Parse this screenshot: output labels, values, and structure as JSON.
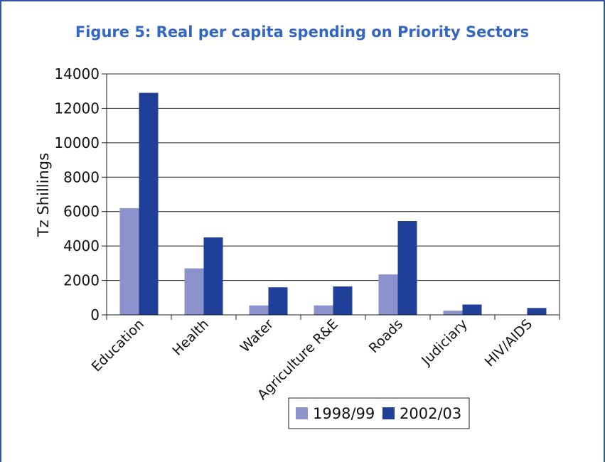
{
  "chart_data": {
    "type": "bar",
    "title": "Figure 5: Real per capita spending on Priority Sectors",
    "xlabel": "",
    "ylabel": "Tz Shillings",
    "ylim": [
      0,
      14000
    ],
    "yticks": [
      0,
      2000,
      4000,
      6000,
      8000,
      10000,
      12000,
      14000
    ],
    "grid": true,
    "legend_position": "bottom",
    "categories": [
      "Education",
      "Health",
      "Water",
      "Agriculture R&E",
      "Roads",
      "Judiciary",
      "HIV/AIDS"
    ],
    "series": [
      {
        "name": "1998/99",
        "color": "#8c93cc",
        "values": [
          6200,
          2700,
          550,
          550,
          2350,
          250,
          0
        ]
      },
      {
        "name": "2002/03",
        "color": "#1f3f99",
        "values": [
          12900,
          4500,
          1600,
          1650,
          5450,
          600,
          400
        ]
      }
    ]
  }
}
